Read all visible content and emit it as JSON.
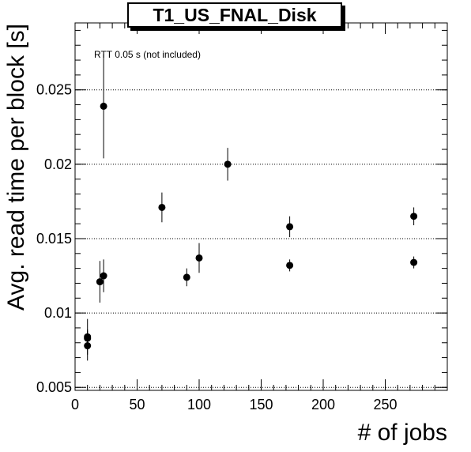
{
  "chart_data": {
    "type": "scatter",
    "title": "T1_US_FNAL_Disk",
    "xlabel": "# of jobs",
    "ylabel": "Avg. read time per block [s]",
    "annotation": "RTT 0.05 s (not included)",
    "xlim": [
      0,
      300
    ],
    "ylim": [
      0.0048,
      0.0295
    ],
    "x_ticks": [
      0,
      50,
      100,
      150,
      200,
      250
    ],
    "x_tick_labels": [
      "0",
      "50",
      "100",
      "150",
      "200",
      "250"
    ],
    "y_ticks": [
      0.005,
      0.01,
      0.015,
      0.02,
      0.025
    ],
    "y_tick_labels": [
      "0.005",
      "0.01",
      "0.015",
      "0.02",
      "0.025"
    ],
    "y_grid": true,
    "marker_color": "#000000",
    "points": [
      {
        "x": 10,
        "y": 0.0084,
        "err": 0.0012
      },
      {
        "x": 10,
        "y": 0.0083,
        "err": 0.0006
      },
      {
        "x": 10,
        "y": 0.0078,
        "err": 0.001
      },
      {
        "x": 20,
        "y": 0.0121,
        "err": 0.0014
      },
      {
        "x": 23,
        "y": 0.0125,
        "err": 0.0011
      },
      {
        "x": 23,
        "y": 0.0239,
        "err": 0.0035
      },
      {
        "x": 70,
        "y": 0.0171,
        "err": 0.001
      },
      {
        "x": 90,
        "y": 0.0124,
        "err": 0.0006
      },
      {
        "x": 100,
        "y": 0.0137,
        "err": 0.001
      },
      {
        "x": 123,
        "y": 0.02,
        "err": 0.0011
      },
      {
        "x": 173,
        "y": 0.0158,
        "err": 0.0007
      },
      {
        "x": 173,
        "y": 0.0132,
        "err": 0.0004
      },
      {
        "x": 273,
        "y": 0.0165,
        "err": 0.0006
      },
      {
        "x": 273,
        "y": 0.0134,
        "err": 0.0004
      }
    ]
  }
}
